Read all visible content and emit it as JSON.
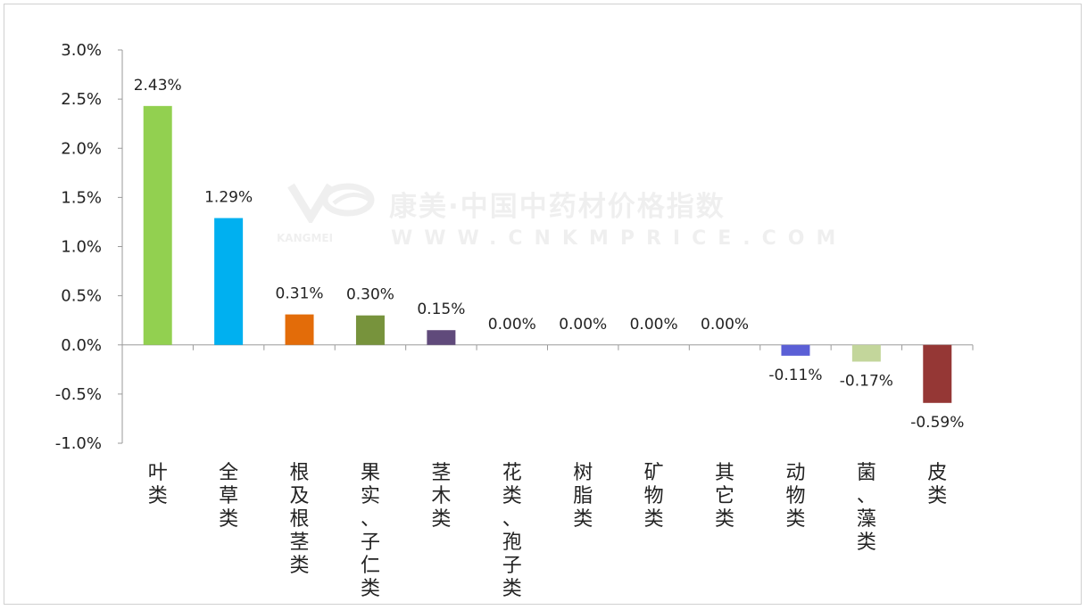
{
  "chart_data": {
    "type": "bar",
    "categories": [
      "叶类",
      "全草类",
      "根及根茎类",
      "果实、子仁类",
      "茎木类",
      "花类、孢子类",
      "树脂类",
      "矿物类",
      "其它类",
      "动物类",
      "菌、藻类",
      "皮类"
    ],
    "values": [
      2.43,
      1.29,
      0.31,
      0.3,
      0.15,
      0.0,
      0.0,
      0.0,
      0.0,
      -0.11,
      -0.17,
      -0.59
    ],
    "value_labels": [
      "2.43%",
      "1.29%",
      "0.31%",
      "0.30%",
      "0.15%",
      "0.00%",
      "0.00%",
      "0.00%",
      "0.00%",
      "-0.11%",
      "-0.17%",
      "-0.59%"
    ],
    "colors": [
      "#92d050",
      "#00b0f0",
      "#e36c09",
      "#77933c",
      "#604a7b",
      "#cccccc",
      "#cccccc",
      "#cccccc",
      "#cccccc",
      "#5b5fd6",
      "#c3d69b",
      "#953735"
    ],
    "yticks": [
      3.0,
      2.5,
      2.0,
      1.5,
      1.0,
      0.5,
      0.0,
      -0.5,
      -1.0
    ],
    "ytick_labels": [
      "3.0%",
      "2.5%",
      "2.0%",
      "1.5%",
      "1.0%",
      "0.5%",
      "0.0%",
      "-0.5%",
      "-1.0%"
    ],
    "ylim": [
      -1.0,
      3.0
    ],
    "title": "",
    "xlabel": "",
    "ylabel": "",
    "grid": false,
    "legend": "none"
  },
  "watermark": {
    "title": "康美·中国中药材价格指数",
    "brand": "KANGMEI",
    "url": "WWW.CNKMPRICE.COM"
  }
}
